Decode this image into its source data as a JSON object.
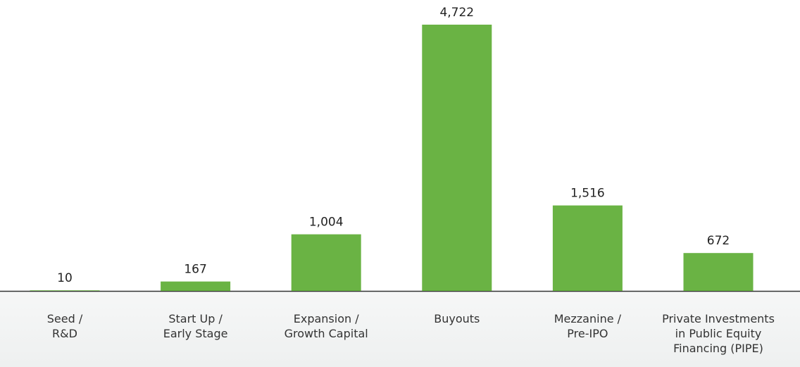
{
  "chart_data": {
    "type": "bar",
    "categories": [
      "Seed /\nR&D",
      "Start Up /\nEarly Stage",
      "Expansion /\nGrowth Capital",
      "Buyouts",
      "Mezzanine /\nPre-IPO",
      "Private Investments\nin Public Equity\nFinancing (PIPE)"
    ],
    "values": [
      10,
      167,
      1004,
      4722,
      1516,
      672
    ],
    "value_labels": [
      "10",
      "167",
      "1,004",
      "4,722",
      "1,516",
      "672"
    ],
    "color": "#6ab344"
  }
}
